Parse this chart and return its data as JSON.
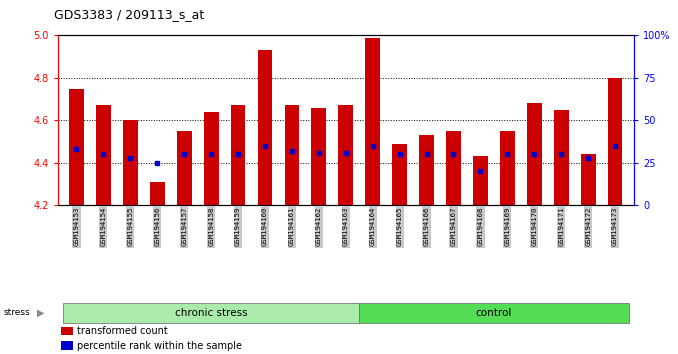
{
  "title": "GDS3383 / 209113_s_at",
  "samples": [
    "GSM194153",
    "GSM194154",
    "GSM194155",
    "GSM194156",
    "GSM194157",
    "GSM194158",
    "GSM194159",
    "GSM194160",
    "GSM194161",
    "GSM194162",
    "GSM194163",
    "GSM194164",
    "GSM194165",
    "GSM194166",
    "GSM194167",
    "GSM194168",
    "GSM194169",
    "GSM194170",
    "GSM194171",
    "GSM194172",
    "GSM194173"
  ],
  "bar_values": [
    4.75,
    4.67,
    4.6,
    4.31,
    4.55,
    4.64,
    4.67,
    4.93,
    4.67,
    4.66,
    4.67,
    4.99,
    4.49,
    4.53,
    4.55,
    4.43,
    4.55,
    4.68,
    4.65,
    4.44,
    4.8
  ],
  "percentile_values": [
    33,
    30,
    28,
    25,
    30,
    30,
    30,
    35,
    32,
    31,
    31,
    35,
    30,
    30,
    30,
    20,
    30,
    30,
    30,
    28,
    35
  ],
  "bar_bottom": 4.2,
  "ylim": [
    4.2,
    5.0
  ],
  "right_ylim": [
    0,
    100
  ],
  "right_yticks": [
    0,
    25,
    50,
    75,
    100
  ],
  "right_yticklabels": [
    "0",
    "25",
    "50",
    "75",
    "100%"
  ],
  "left_yticks": [
    4.2,
    4.4,
    4.6,
    4.8,
    5.0
  ],
  "dotted_lines": [
    4.4,
    4.6,
    4.8
  ],
  "chronic_stress_count": 11,
  "chronic_stress_color": "#AAEAAA",
  "control_color": "#55DD55",
  "bar_color": "#CC0000",
  "dot_color": "#0000CC",
  "bg_color": "#FFFFFF",
  "tick_label_bg": "#C8C8C8",
  "legend_items": [
    {
      "color": "#CC0000",
      "label": "transformed count"
    },
    {
      "color": "#0000CC",
      "label": "percentile rank within the sample"
    }
  ]
}
